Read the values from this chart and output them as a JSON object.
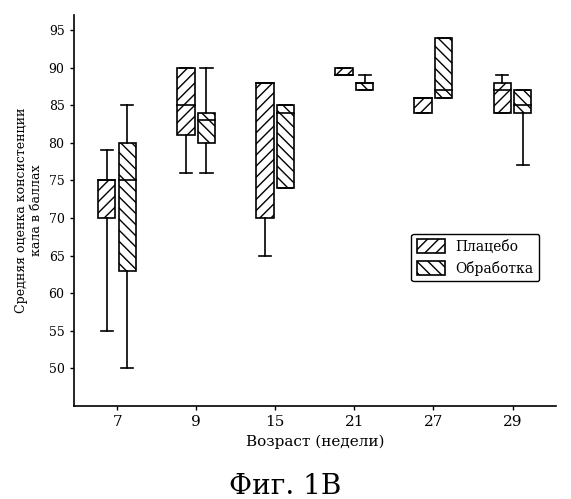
{
  "title_fig": "Фиг. 1В",
  "xlabel": "Возраст (недели)",
  "ylabel": "Средняя оценка консистенции\nкала в баллах",
  "xlabels": [
    "7",
    "9",
    "15",
    "21",
    "27",
    "29"
  ],
  "ylim": [
    45,
    97
  ],
  "yticks": [
    50,
    55,
    60,
    65,
    70,
    75,
    80,
    85,
    90,
    95
  ],
  "legend_labels": [
    "Плацебо",
    "Обработка"
  ],
  "background_color": "#ffffff",
  "placebo": {
    "median": [
      75,
      85,
      88,
      89,
      86,
      87
    ],
    "q1": [
      70,
      81,
      70,
      89,
      84,
      84
    ],
    "q3": [
      75,
      90,
      88,
      90,
      86,
      88
    ],
    "whisker_low": [
      55,
      76,
      65,
      89,
      84,
      84
    ],
    "whisker_high": [
      79,
      90,
      88,
      90,
      86,
      89
    ]
  },
  "treatment": {
    "median": [
      75,
      83,
      84,
      88,
      87,
      85
    ],
    "q1": [
      63,
      80,
      74,
      87,
      86,
      84
    ],
    "q3": [
      80,
      84,
      85,
      88,
      94,
      87
    ],
    "whisker_low": [
      50,
      76,
      74,
      87,
      86,
      77
    ],
    "whisker_high": [
      85,
      90,
      85,
      89,
      94,
      87
    ]
  }
}
